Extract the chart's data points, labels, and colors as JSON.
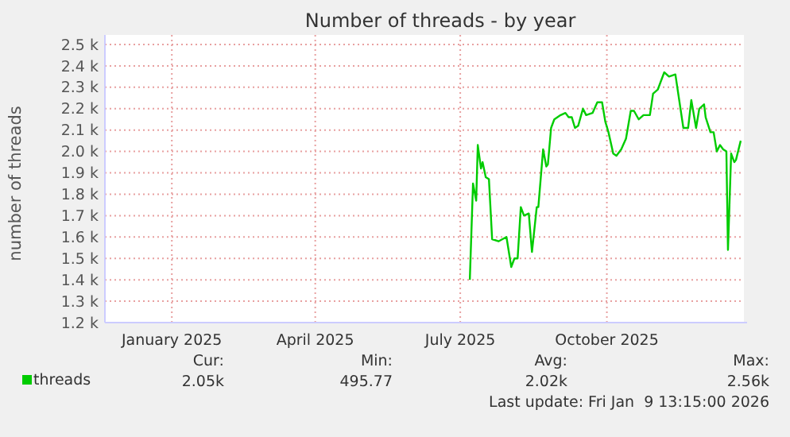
{
  "chart_data": {
    "type": "line",
    "title": "Number of threads - by year",
    "ylabel": "number of threads",
    "x": [
      "2025-07-22",
      "2025-07-24",
      "2025-07-26",
      "2025-07-27",
      "2025-07-29",
      "2025-07-30",
      "2025-08-01",
      "2025-08-03",
      "2025-08-05",
      "2025-08-09",
      "2025-08-14",
      "2025-08-17",
      "2025-08-19",
      "2025-08-21",
      "2025-08-23",
      "2025-08-25",
      "2025-08-28",
      "2025-08-30",
      "2025-09-02",
      "2025-09-03",
      "2025-09-06",
      "2025-09-08",
      "2025-09-09",
      "2025-09-11",
      "2025-09-13",
      "2025-09-17",
      "2025-09-20",
      "2025-09-22",
      "2025-09-24",
      "2025-09-26",
      "2025-09-28",
      "2025-10-01",
      "2025-10-03",
      "2025-10-07",
      "2025-10-10",
      "2025-10-13",
      "2025-10-15",
      "2025-10-17",
      "2025-10-20",
      "2025-10-22",
      "2025-10-25",
      "2025-10-28",
      "2025-10-31",
      "2025-11-02",
      "2025-11-05",
      "2025-11-08",
      "2025-11-12",
      "2025-11-14",
      "2025-11-17",
      "2025-11-21",
      "2025-11-24",
      "2025-11-28",
      "2025-11-30",
      "2025-12-03",
      "2025-12-06",
      "2025-12-08",
      "2025-12-11",
      "2025-12-13",
      "2025-12-16",
      "2025-12-17",
      "2025-12-20",
      "2025-12-22",
      "2025-12-24",
      "2025-12-26",
      "2025-12-28",
      "2025-12-30",
      "2025-12-31",
      "2026-01-02",
      "2026-01-04",
      "2026-01-05",
      "2026-01-08"
    ],
    "series": [
      {
        "name": "threads",
        "color": "#00cc00",
        "values": [
          1.4,
          1.85,
          1.77,
          2.03,
          1.92,
          1.95,
          1.88,
          1.87,
          1.59,
          1.58,
          1.6,
          1.46,
          1.5,
          1.5,
          1.74,
          1.7,
          1.71,
          1.53,
          1.74,
          1.74,
          2.01,
          1.93,
          1.94,
          2.11,
          2.15,
          2.17,
          2.18,
          2.16,
          2.16,
          2.11,
          2.12,
          2.2,
          2.17,
          2.18,
          2.23,
          2.23,
          2.14,
          2.09,
          1.99,
          1.98,
          2.01,
          2.06,
          2.19,
          2.19,
          2.15,
          2.17,
          2.17,
          2.27,
          2.29,
          2.37,
          2.35,
          2.36,
          2.26,
          2.11,
          2.11,
          2.24,
          2.11,
          2.2,
          2.22,
          2.16,
          2.09,
          2.09,
          2.0,
          2.03,
          2.01,
          2.0,
          1.54,
          1.99,
          1.95,
          1.96,
          2.05
        ]
      }
    ],
    "xlim": [
      "2024-12-05",
      "2026-01-10"
    ],
    "xticks": [
      {
        "value": "2025-01-16",
        "label": "January 2025"
      },
      {
        "value": "2025-04-16",
        "label": "April 2025"
      },
      {
        "value": "2025-07-16",
        "label": "July 2025"
      },
      {
        "value": "2025-10-16",
        "label": "October 2025"
      }
    ],
    "ylim": [
      1.2,
      2.5
    ],
    "yticks": [
      {
        "value": 1.2,
        "label": "1.2 k"
      },
      {
        "value": 1.3,
        "label": "1.3 k"
      },
      {
        "value": 1.4,
        "label": "1.4 k"
      },
      {
        "value": 1.5,
        "label": "1.5 k"
      },
      {
        "value": 1.6,
        "label": "1.6 k"
      },
      {
        "value": 1.7,
        "label": "1.7 k"
      },
      {
        "value": 1.8,
        "label": "1.8 k"
      },
      {
        "value": 1.9,
        "label": "1.9 k"
      },
      {
        "value": 2.0,
        "label": "2.0 k"
      },
      {
        "value": 2.1,
        "label": "2.1 k"
      },
      {
        "value": 2.2,
        "label": "2.2 k"
      },
      {
        "value": 2.3,
        "label": "2.3 k"
      },
      {
        "value": 2.4,
        "label": "2.4 k"
      },
      {
        "value": 2.5,
        "label": "2.5 k"
      }
    ],
    "grid": true,
    "legend": "bottom left",
    "marker": "none",
    "line_style": "solid",
    "annotations": [
      "Cur:",
      "2.05k",
      "Min:",
      "495.77",
      "Avg:",
      "2.02k",
      "Max:",
      "2.56k",
      "Last update: Fri Jan  9 13:15:00 2026"
    ]
  }
}
